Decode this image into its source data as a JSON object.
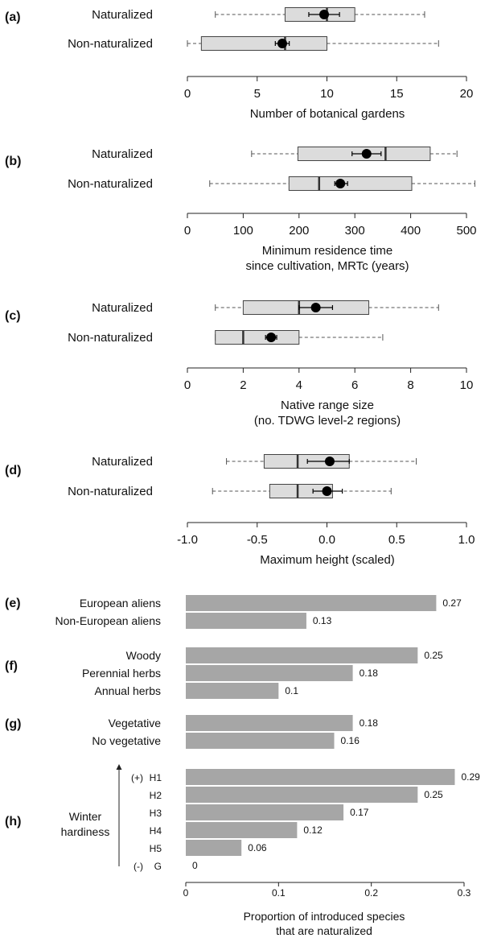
{
  "chart_data": [
    {
      "panel": "(a)",
      "type": "boxplot",
      "xlabel": [
        "Number of botanical gardens"
      ],
      "xlim": [
        0,
        20
      ],
      "ticks": [
        0,
        5,
        10,
        15,
        20
      ],
      "tick_labels": [
        "0",
        "5",
        "10",
        "15",
        "20"
      ],
      "groups": [
        {
          "label": "Naturalized",
          "whisker_low": 2,
          "q1": 7,
          "median": 10,
          "q3": 12,
          "whisker_high": 17,
          "mean": 9.8,
          "ci_low": 8.7,
          "ci_high": 10.9
        },
        {
          "label": "Non-naturalized",
          "whisker_low": 0,
          "q1": 1,
          "median": 7,
          "q3": 10,
          "whisker_high": 18,
          "mean": 6.8,
          "ci_low": 6.3,
          "ci_high": 7.3
        }
      ]
    },
    {
      "panel": "(b)",
      "type": "boxplot",
      "xlabel": [
        "Minimum residence time",
        "since cultivation, MRTc (years)"
      ],
      "xlim": [
        0,
        500
      ],
      "ticks": [
        0,
        100,
        200,
        300,
        400,
        500
      ],
      "tick_labels": [
        "0",
        "100",
        "200",
        "300",
        "400",
        "500"
      ],
      "groups": [
        {
          "label": "Naturalized",
          "whisker_low": 115,
          "q1": 198,
          "median": 355,
          "q3": 435,
          "whisker_high": 483,
          "mean": 321,
          "ci_low": 295,
          "ci_high": 347
        },
        {
          "label": "Non-naturalized",
          "whisker_low": 40,
          "q1": 182,
          "median": 236,
          "q3": 402,
          "whisker_high": 515,
          "mean": 274,
          "ci_low": 264,
          "ci_high": 287
        }
      ]
    },
    {
      "panel": "(c)",
      "type": "boxplot",
      "xlabel": [
        "Native range size",
        "(no. TDWG level-2 regions)"
      ],
      "xlim": [
        0,
        10
      ],
      "ticks": [
        0,
        2,
        4,
        6,
        8,
        10
      ],
      "tick_labels": [
        "0",
        "2",
        "4",
        "6",
        "8",
        "10"
      ],
      "groups": [
        {
          "label": "Naturalized",
          "whisker_low": 1,
          "q1": 2,
          "median": 4,
          "q3": 6.5,
          "whisker_high": 9,
          "mean": 4.6,
          "ci_low": 4.0,
          "ci_high": 5.2
        },
        {
          "label": "Non-naturalized",
          "whisker_low": 1,
          "q1": 1,
          "median": 2,
          "q3": 4,
          "whisker_high": 7,
          "mean": 3.0,
          "ci_low": 2.8,
          "ci_high": 3.2
        }
      ]
    },
    {
      "panel": "(d)",
      "type": "boxplot",
      "xlabel": [
        "Maximum height (scaled)"
      ],
      "xlim": [
        -1,
        1
      ],
      "ticks": [
        -1,
        -0.5,
        0,
        0.5,
        1
      ],
      "tick_labels": [
        "-1.0",
        "-0.5",
        "0.0",
        "0.5",
        "1.0"
      ],
      "groups": [
        {
          "label": "Naturalized",
          "whisker_low": -0.72,
          "q1": -0.45,
          "median": -0.21,
          "q3": 0.16,
          "whisker_high": 0.64,
          "mean": 0.02,
          "ci_low": -0.14,
          "ci_high": 0.16
        },
        {
          "label": "Non-naturalized",
          "whisker_low": -0.82,
          "q1": -0.41,
          "median": -0.21,
          "q3": 0.04,
          "whisker_high": 0.46,
          "mean": 0.0,
          "ci_low": -0.1,
          "ci_high": 0.11
        }
      ]
    },
    {
      "type": "bar",
      "orientation": "horizontal",
      "xlabel": [
        "Proportion of introduced species",
        "that are naturalized"
      ],
      "xlim": [
        0,
        0.3
      ],
      "ticks": [
        0,
        0.1,
        0.2,
        0.3
      ],
      "tick_labels": [
        "0",
        "0.1",
        "0.2",
        "0.3"
      ],
      "bar_color": "#a6a6a6",
      "groups": [
        {
          "panel": "(e)",
          "bars": [
            {
              "label": "European aliens",
              "value": 0.27,
              "value_label": "0.27"
            },
            {
              "label": "Non-European aliens",
              "value": 0.13,
              "value_label": "0.13"
            }
          ]
        },
        {
          "panel": "(f)",
          "bars": [
            {
              "label": "Woody",
              "value": 0.25,
              "value_label": "0.25"
            },
            {
              "label": "Perennial herbs",
              "value": 0.18,
              "value_label": "0.18"
            },
            {
              "label": "Annual herbs",
              "value": 0.1,
              "value_label": "0.1"
            }
          ]
        },
        {
          "panel": "(g)",
          "bars": [
            {
              "label": "Vegetative",
              "value": 0.18,
              "value_label": "0.18"
            },
            {
              "label": "No vegetative",
              "value": 0.16,
              "value_label": "0.16"
            }
          ]
        },
        {
          "panel": "(h)",
          "side_label": [
            "Winter",
            "hardiness"
          ],
          "bars": [
            {
              "prefix": "(+)",
              "label": "H1",
              "value": 0.29,
              "value_label": "0.29"
            },
            {
              "label": "H2",
              "value": 0.25,
              "value_label": "0.25"
            },
            {
              "label": "H3",
              "value": 0.17,
              "value_label": "0.17"
            },
            {
              "label": "H4",
              "value": 0.12,
              "value_label": "0.12"
            },
            {
              "label": "H5",
              "value": 0.06,
              "value_label": "0.06"
            },
            {
              "prefix": "(-)",
              "label": "G",
              "value": 0,
              "value_label": "0"
            }
          ]
        }
      ]
    }
  ]
}
